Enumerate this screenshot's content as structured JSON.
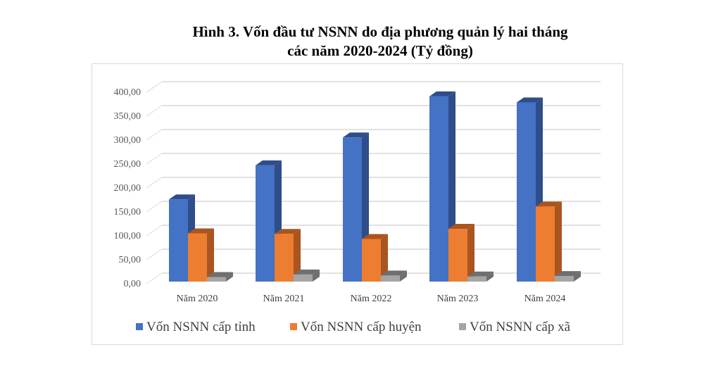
{
  "chart_data": {
    "type": "bar",
    "title": "Hình 3. Vốn đầu tư NSNN do địa phương quản lý hai tháng",
    "subtitle": "các năm 2020-2024 (Tỷ đồng)",
    "xlabel": "",
    "ylabel": "",
    "ylim": [
      0,
      400
    ],
    "yticks": [
      "0,00",
      "50,00",
      "100,00",
      "150,00",
      "200,00",
      "250,00",
      "300,00",
      "350,00",
      "400,00"
    ],
    "grid": true,
    "legend_position": "bottom",
    "categories": [
      "Năm 2020",
      "Năm 2021",
      "Năm 2022",
      "Năm 2023",
      "Năm 2024"
    ],
    "series": [
      {
        "name": "Vốn NSNN cấp tỉnh",
        "color": "#4472c4",
        "side": "#2e4d8a",
        "values": [
          162,
          229,
          284,
          365,
          353
        ]
      },
      {
        "name": "Vốn NSNN cấp huyện",
        "color": "#ed7d31",
        "side": "#a9551f",
        "values": [
          95,
          94,
          84,
          104,
          148
        ]
      },
      {
        "name": "Vốn NSNN cấp xã",
        "color": "#a5a5a5",
        "side": "#6f6f6f",
        "values": [
          9,
          14,
          12,
          10,
          11
        ]
      }
    ]
  }
}
